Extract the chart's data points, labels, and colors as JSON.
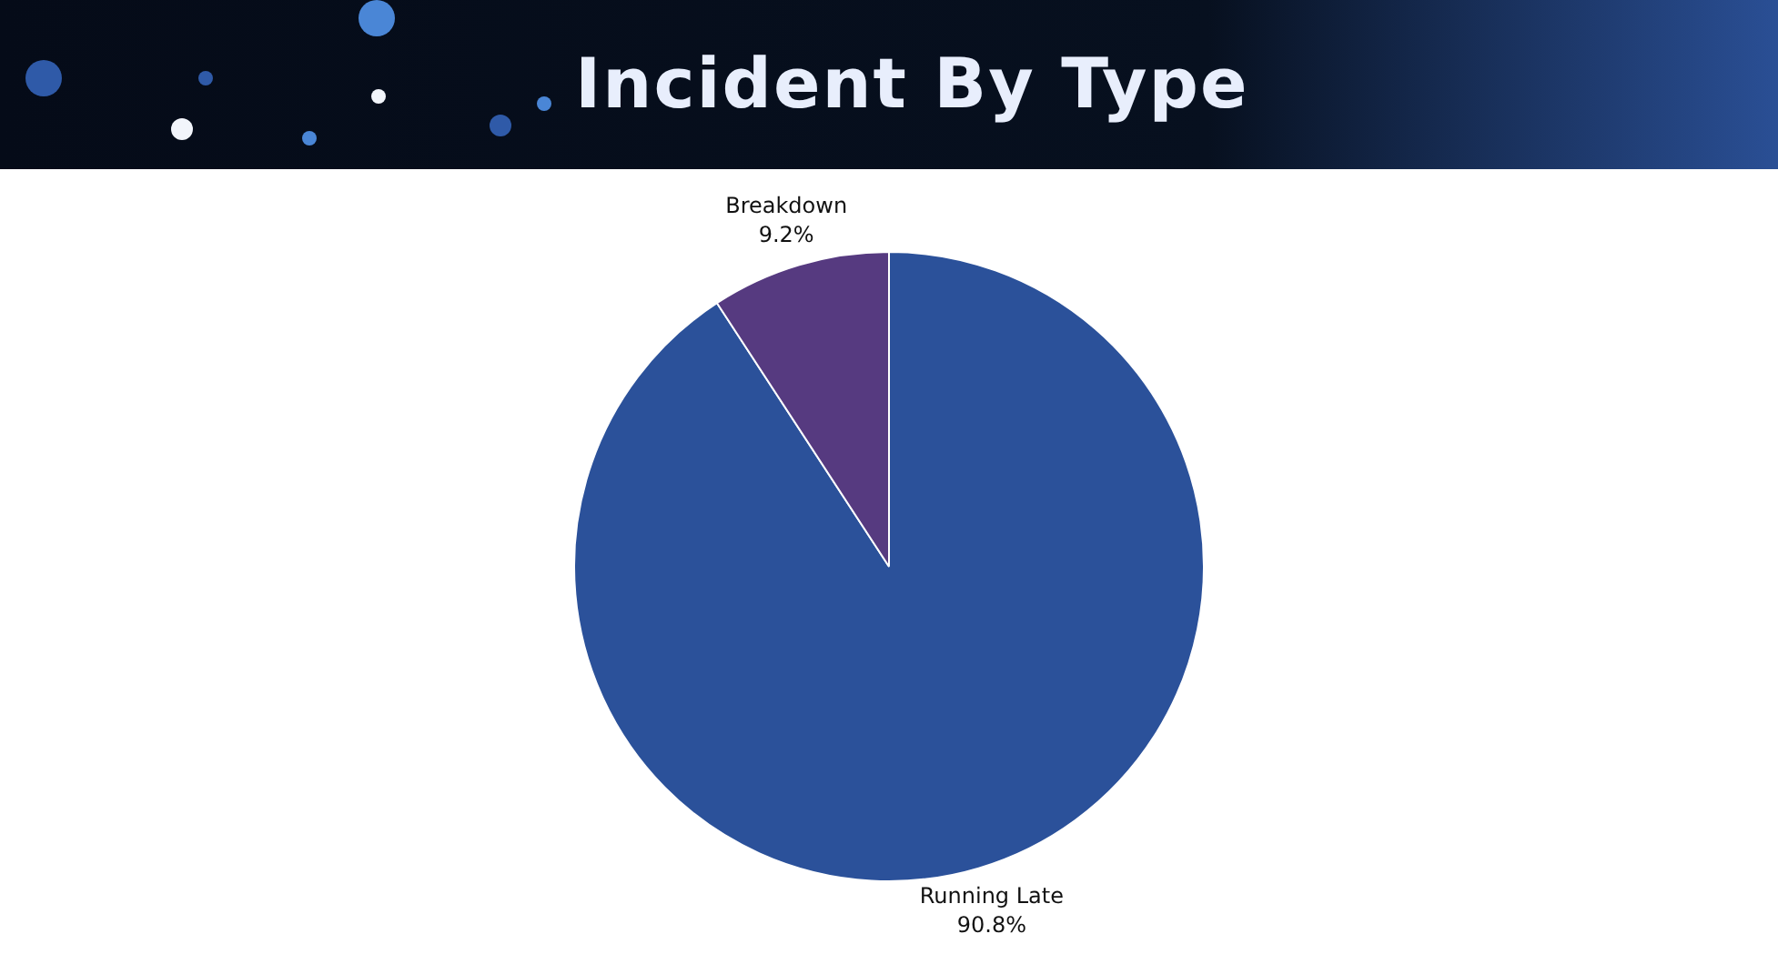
{
  "chart_data": {
    "type": "pie",
    "title": "Incident By Type",
    "categories": [
      "Running Late",
      "Breakdown"
    ],
    "values": [
      90.8,
      9.2
    ],
    "colors": [
      "#2b519a",
      "#563a80"
    ],
    "value_labels": [
      "90.8%",
      "9.2%"
    ]
  }
}
